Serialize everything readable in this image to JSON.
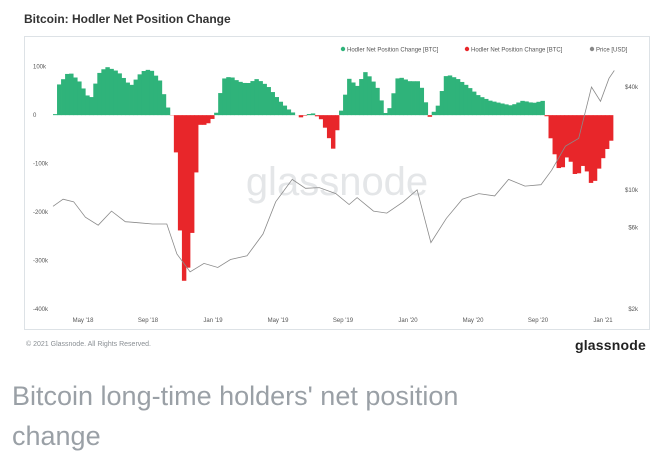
{
  "header": {
    "title": "Bitcoin: Hodler Net Position Change"
  },
  "footer": {
    "copyright": "© 2021 Glassnode. All Rights Reserved.",
    "brand": "glassnode"
  },
  "caption": {
    "line1": "Bitcoin long-time holders' net position",
    "line2": "change"
  },
  "watermark": "glassnode",
  "colors": {
    "positive": "#2fb37a",
    "negative": "#e8262a",
    "price": "#8a8a8a"
  },
  "chart_data": {
    "type": "area",
    "title": "Bitcoin: Hodler Net Position Change",
    "legend": {
      "position": "top-right",
      "entries": [
        "Hodler Net Position Change [BTC]",
        "Hodler Net Position Change [BTC]",
        "Price [USD]"
      ]
    },
    "x_ticks": [
      "May '18",
      "Sep '18",
      "Jan '19",
      "May '19",
      "Sep '19",
      "Jan '20",
      "May '20",
      "Sep '20",
      "Jan '21"
    ],
    "y_left": {
      "ticks": [
        "100k",
        "0",
        "-100k",
        "-200k",
        "-300k",
        "-400k"
      ],
      "range": [
        -400000,
        120000
      ]
    },
    "y_right": {
      "scale": "log",
      "ticks": [
        "$40k",
        "$10k",
        "$6k",
        "$2k"
      ],
      "range": [
        2000,
        60000
      ]
    },
    "grid": false,
    "series": [
      {
        "name": "Hodler Net Position Change [BTC]",
        "x": [
          "2018-04-01",
          "2018-04-10",
          "2018-05-01",
          "2018-05-20",
          "2018-06-10",
          "2018-06-25",
          "2018-07-10",
          "2018-08-01",
          "2018-08-25",
          "2018-09-15",
          "2018-10-01",
          "2018-10-20",
          "2018-11-01",
          "2018-11-15",
          "2018-12-01",
          "2018-12-15",
          "2019-01-01",
          "2019-01-15",
          "2019-02-01",
          "2019-02-15",
          "2019-03-01",
          "2019-03-15",
          "2019-04-01",
          "2019-04-20",
          "2019-05-10",
          "2019-06-01",
          "2019-06-20",
          "2019-07-10",
          "2019-08-01",
          "2019-08-20",
          "2019-09-10",
          "2019-09-25",
          "2019-10-10",
          "2019-10-25",
          "2019-11-10",
          "2019-12-01",
          "2019-12-20",
          "2020-01-10",
          "2020-02-01",
          "2020-02-20",
          "2020-03-10",
          "2020-03-25",
          "2020-04-10",
          "2020-05-01",
          "2020-05-20",
          "2020-06-10",
          "2020-07-01",
          "2020-07-20",
          "2020-08-10",
          "2020-09-01",
          "2020-09-20",
          "2020-10-10",
          "2020-10-25",
          "2020-11-10",
          "2020-11-25",
          "2020-12-10",
          "2020-12-25",
          "2021-01-10",
          "2021-01-25",
          "2021-02-10",
          "2021-02-20"
        ],
        "values": [
          -40000,
          60000,
          90000,
          70000,
          30000,
          85000,
          100000,
          90000,
          60000,
          90000,
          95000,
          70000,
          20000,
          -10000,
          -350000,
          -300000,
          -20000,
          -20000,
          0,
          75000,
          80000,
          70000,
          65000,
          75000,
          60000,
          30000,
          10000,
          -5000,
          5000,
          -10000,
          -70000,
          10000,
          75000,
          60000,
          90000,
          60000,
          -5000,
          80000,
          70000,
          70000,
          -5000,
          20000,
          85000,
          75000,
          60000,
          40000,
          30000,
          25000,
          20000,
          30000,
          25000,
          30000,
          -60000,
          -120000,
          -80000,
          -130000,
          -100000,
          -150000,
          -100000,
          -60000,
          -40000
        ]
      },
      {
        "name": "Price [USD]",
        "x": [
          "2018-04-01",
          "2018-04-20",
          "2018-05-10",
          "2018-06-01",
          "2018-06-25",
          "2018-07-20",
          "2018-08-15",
          "2018-09-10",
          "2018-10-05",
          "2018-11-01",
          "2018-11-20",
          "2018-12-15",
          "2019-01-10",
          "2019-02-05",
          "2019-03-01",
          "2019-04-01",
          "2019-05-01",
          "2019-05-25",
          "2019-06-25",
          "2019-07-20",
          "2019-08-15",
          "2019-09-15",
          "2019-10-10",
          "2019-10-25",
          "2019-11-25",
          "2019-12-20",
          "2020-01-20",
          "2020-02-15",
          "2020-03-12",
          "2020-04-10",
          "2020-05-10",
          "2020-06-10",
          "2020-07-10",
          "2020-08-05",
          "2020-09-05",
          "2020-10-05",
          "2020-10-25",
          "2020-11-20",
          "2020-12-15",
          "2021-01-08",
          "2021-01-25",
          "2021-02-10",
          "2021-02-20"
        ],
        "values": [
          8000,
          8800,
          8500,
          6900,
          6200,
          7500,
          6500,
          6400,
          6300,
          6300,
          4200,
          3300,
          3700,
          3500,
          3900,
          4100,
          5500,
          8500,
          11500,
          10200,
          10300,
          9500,
          8200,
          9000,
          7500,
          7300,
          8500,
          10000,
          4900,
          6800,
          8800,
          9500,
          9200,
          11500,
          10500,
          10700,
          13000,
          18000,
          20000,
          40000,
          33000,
          45000,
          50000
        ]
      }
    ]
  }
}
